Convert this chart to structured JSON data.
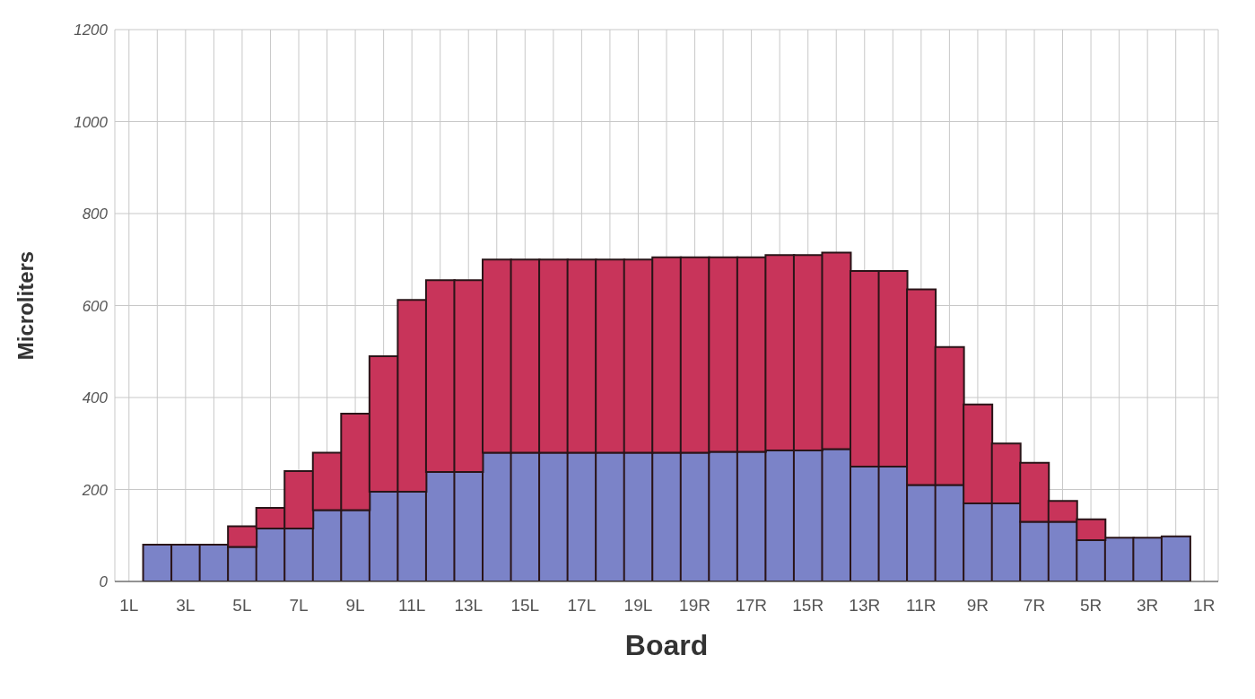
{
  "chart_data": {
    "type": "bar",
    "stacked": true,
    "xlabel": "Board",
    "ylabel": "Microliters",
    "categories": [
      "1L",
      null,
      "3L",
      null,
      "5L",
      null,
      "7L",
      null,
      "9L",
      null,
      "11L",
      null,
      "13L",
      null,
      "15L",
      null,
      "17L",
      null,
      "19L",
      null,
      "19R",
      null,
      "17R",
      null,
      "15R",
      null,
      "13R",
      null,
      "11R",
      null,
      "9R",
      null,
      "7R",
      null,
      "5R",
      null,
      "3R",
      null,
      "1R"
    ],
    "series": [
      {
        "color": "#7b83c8",
        "values": [
          null,
          80,
          80,
          80,
          75,
          115,
          115,
          155,
          155,
          195,
          195,
          238,
          238,
          280,
          280,
          280,
          280,
          280,
          280,
          280,
          280,
          282,
          282,
          285,
          285,
          288,
          250,
          250,
          210,
          210,
          170,
          170,
          130,
          130,
          90,
          95,
          95,
          98,
          null
        ]
      },
      {
        "color": "#c8345a",
        "values": [
          null,
          0,
          0,
          0,
          45,
          45,
          125,
          125,
          210,
          295,
          417,
          417,
          417,
          420,
          420,
          420,
          420,
          420,
          420,
          425,
          425,
          423,
          423,
          425,
          425,
          427,
          425,
          425,
          425,
          300,
          215,
          130,
          128,
          45,
          45,
          0,
          0,
          0,
          null
        ]
      }
    ],
    "ylim": [
      0,
      1200
    ],
    "yticks": [
      0,
      200,
      400,
      600,
      800,
      1000,
      1200
    ],
    "grid": true
  }
}
